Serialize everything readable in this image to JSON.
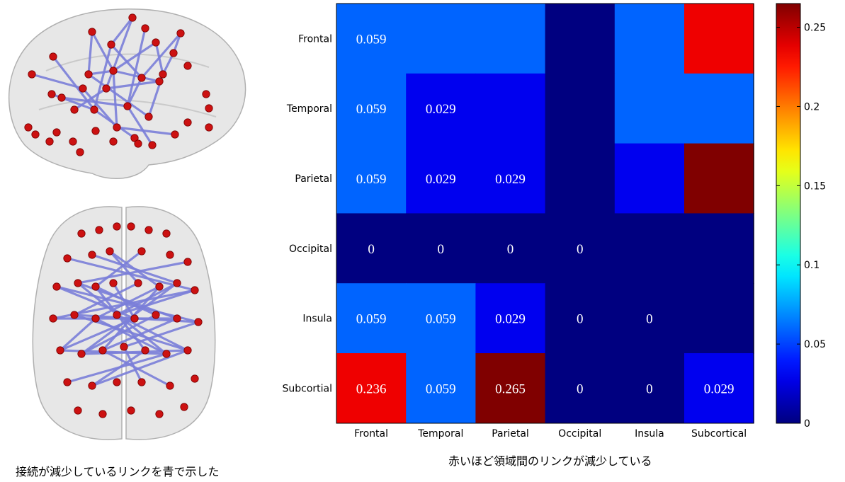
{
  "captions": {
    "left": "接続が減少しているリンクを青で示した",
    "right": "赤いほど領域間のリンクが減少している"
  },
  "brain_colors": {
    "node": "#cc1111",
    "edge": "#7b7fd9",
    "cortex": "#d3d3d3"
  },
  "chart_data": {
    "type": "heatmap",
    "rows": [
      "Frontal",
      "Temporal",
      "Parietal",
      "Occipital",
      "Insula",
      "Subcortial"
    ],
    "columns": [
      "Frontal",
      "Temporal",
      "Parietal",
      "Occipital",
      "Insula",
      "Subcortical"
    ],
    "values": [
      [
        0.059,
        0.059,
        0.059,
        0,
        0.059,
        0.236
      ],
      [
        0.059,
        0.029,
        0.029,
        0,
        0.059,
        0.059
      ],
      [
        0.059,
        0.029,
        0.029,
        0,
        0.029,
        0.265
      ],
      [
        0,
        0,
        0,
        0,
        0,
        0
      ],
      [
        0.059,
        0.059,
        0.029,
        0,
        0,
        0
      ],
      [
        0.236,
        0.059,
        0.265,
        0,
        0,
        0.029
      ]
    ],
    "cell_labels": [
      [
        "0.059",
        "",
        "",
        "",
        "",
        ""
      ],
      [
        "0.059",
        "0.029",
        "",
        "",
        "",
        ""
      ],
      [
        "0.059",
        "0.029",
        "0.029",
        "",
        "",
        ""
      ],
      [
        "0",
        "0",
        "0",
        "0",
        "",
        ""
      ],
      [
        "0.059",
        "0.059",
        "0.029",
        "0",
        "0",
        ""
      ],
      [
        "0.236",
        "0.059",
        "0.265",
        "0",
        "0",
        "0.029"
      ]
    ],
    "colorbar": {
      "min": 0,
      "max": 0.265,
      "ticks": [
        0,
        0.05,
        0.1,
        0.15,
        0.2,
        0.25
      ],
      "tick_labels": [
        "0",
        "0.05",
        "0.1",
        "0.15",
        "0.2",
        "0.25"
      ],
      "colormap": "jet"
    }
  }
}
